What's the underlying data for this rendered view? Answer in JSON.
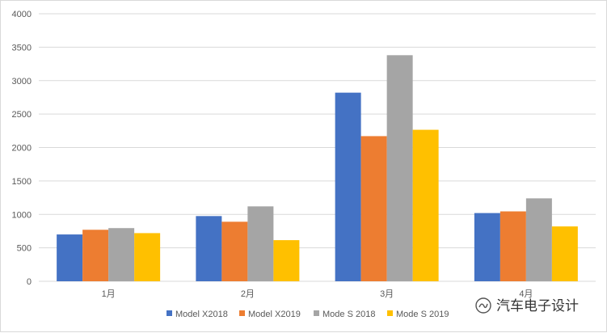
{
  "chart_data": {
    "type": "bar",
    "categories": [
      "1月",
      "2月",
      "3月",
      "4月"
    ],
    "series": [
      {
        "name": "Model X2018",
        "color": "#4472C4",
        "values": [
          700,
          975,
          2820,
          1020
        ]
      },
      {
        "name": "Model X2019",
        "color": "#ED7D31",
        "values": [
          770,
          890,
          2170,
          1045
        ]
      },
      {
        "name": "Mode S 2018",
        "color": "#A5A5A5",
        "values": [
          795,
          1120,
          3380,
          1240
        ]
      },
      {
        "name": "Mode S 2019",
        "color": "#FFC000",
        "values": [
          720,
          615,
          2265,
          820
        ]
      }
    ],
    "yticks": [
      "0",
      "500",
      "1000",
      "1500",
      "2000",
      "2500",
      "3000",
      "3500",
      "4000"
    ],
    "ylim": [
      0,
      4000
    ],
    "grid": true,
    "legend_position": "bottom"
  },
  "watermark": {
    "text": "汽车电子设计",
    "icon": "wechat-channel-icon"
  }
}
